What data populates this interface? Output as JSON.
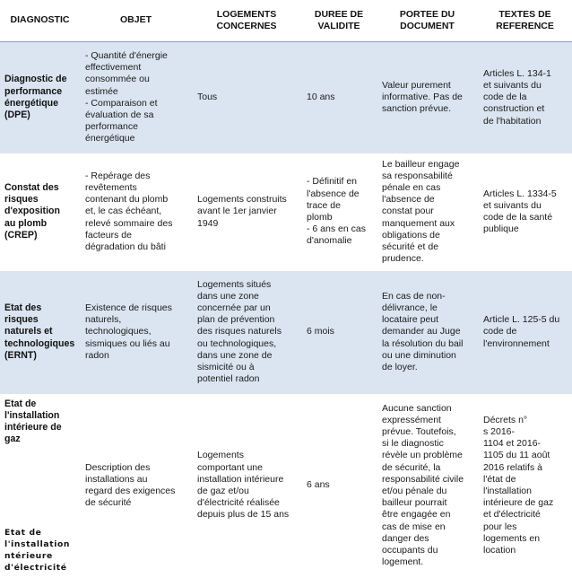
{
  "headers": {
    "diagnostic": "DIAGNOSTIC",
    "objet": "OBJET",
    "logements": "LOGEMENTS\nCONCERNES",
    "duree": "DUREE DE\nVALIDITE",
    "portee": "PORTEE DU\nDOCUMENT",
    "textes": "TEXTES DE\nREFERENCE"
  },
  "rows": [
    {
      "diagnostic": "Diagnostic de\nperformance\nénergétique\n(DPE)",
      "objet": "- Quantité d'énergie\neffectivement\nconsommée ou\nestimée\n- Comparaison et\névaluation de sa\nperformance\nénergétique",
      "logements": "Tous",
      "duree": "10 ans",
      "portee": "Valeur purement\ninformative. Pas de\nsanction prévue.",
      "textes": "Articles L. 134-1\net suivants du\ncode de la\nconstruction et\nde l'habitation"
    },
    {
      "diagnostic": "Constat des\nrisques\nd'exposition\nau plomb\n(CREP)",
      "objet": "- Repérage des\nrevêtements\ncontenant du plomb\net, le cas échéant,\nrelevé sommaire des\nfacteurs de\ndégradation du bâti",
      "logements": "Logements construits\navant le 1er janvier\n1949",
      "duree": "- Définitif en\nl'absence de\ntrace de\nplomb\n- 6 ans en cas\nd'anomalie",
      "portee": "Le bailleur engage\nsa responsabilité\npénale en cas\nl'absence de\nconstat pour\nmanquement aux\nobligations de\nsécurité et de\nprudence.",
      "textes": "Articles L. 1334-5\net suivants du\ncode de la santé\npublique"
    },
    {
      "diagnostic": "Etat des\nrisques\nnaturels et\ntechnologiques\n(ERNT)",
      "objet": "Existence de risques\nnaturels,\ntechnologiques,\nsismiques ou liés au\nradon",
      "logements": "Logements situés\ndans une zone\nconcernée par un\nplan de prévention\ndes risques naturels\nou technologiques,\ndans une zone de\nsismicité ou à\npotentiel radon",
      "duree": "6 mois",
      "portee": "En cas de non-\ndélivrance, le\nlocataire peut\ndemander au Juge\nla résolution du bail\nou une diminution\nde loyer.",
      "textes": "Article L. 125-5 du\ncode de\nl'environnement"
    },
    {
      "diagnostic": "Etat de\nl'installation\nintérieure de\ngaz",
      "diagnostic_sub": "Etat de\nl'installation\nntérieure\nd'électricité",
      "objet": "Description des\ninstallations au\nregard des exigences\nde sécurité",
      "logements": "Logements\ncomportant une\ninstallation intérieure\nde gaz et/ou\nd'électricité réalisée\ndepuis plus de 15 ans",
      "duree": "6 ans",
      "portee": "Aucune sanction\nexpressément\nprévue. Toutefois,\nsi le diagnostic\nrévèle un problème\nde sécurité, la\nresponsabilité civile\net/ou pénale du\nbailleur pourrait\nêtre engagée en\ncas de mise en\ndanger des\noccupants du\nlogement.",
      "textes": "Décrets n°\ns 2016-\n1104 et 2016-\n1105 du 11 août\n2016 relatifs à\nl'état de\nl'installation\nintérieure de gaz\net d'électricité\npour les\nlogements en\nlocation"
    }
  ]
}
